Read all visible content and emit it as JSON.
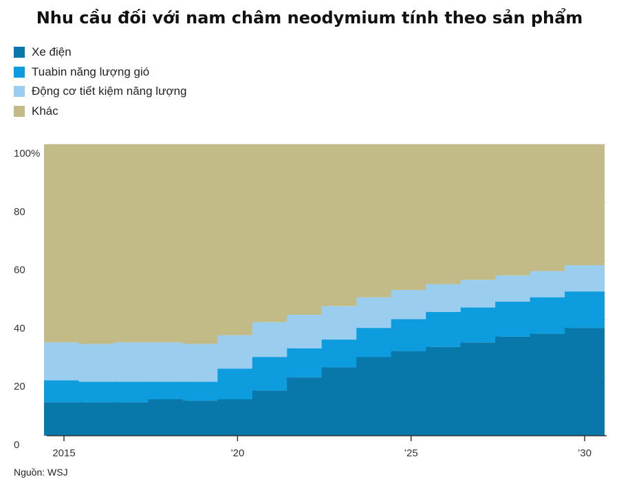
{
  "title": "Nhu cầu đối với nam châm neodymium tính theo sản phẩm",
  "source": "Nguồn: WSJ",
  "colors": {
    "ev": "#0878AA",
    "wind": "#0D9CDD",
    "motor": "#9ACDEE",
    "other": "#C2BB87",
    "grid": "#d9d9d9",
    "axis": "#333333"
  },
  "chart_data": {
    "type": "bar",
    "stacked": true,
    "title": "Nhu cầu đối với nam châm neodymium tính theo sản phẩm",
    "x": [
      2015,
      2016,
      2017,
      2018,
      2019,
      2020,
      2021,
      2022,
      2023,
      2024,
      2025,
      2026,
      2027,
      2028,
      2029,
      2030
    ],
    "x_tick_labels": [
      {
        "x": 2015,
        "label": "2015"
      },
      {
        "x": 2020,
        "label": "’20"
      },
      {
        "x": 2025,
        "label": "’25"
      },
      {
        "x": 2030,
        "label": "’30"
      }
    ],
    "y_ticks": [
      {
        "value": 0,
        "label": "0"
      },
      {
        "value": 20,
        "label": "20"
      },
      {
        "value": 40,
        "label": "40"
      },
      {
        "value": 60,
        "label": "60"
      },
      {
        "value": 80,
        "label": "80"
      },
      {
        "value": 100,
        "label": "100%"
      }
    ],
    "ylim": [
      0,
      100
    ],
    "grid": true,
    "legend_position": "top-left",
    "series": [
      {
        "name": "Xe điện",
        "color_key": "ev",
        "values": [
          11.5,
          11.5,
          11.5,
          12.5,
          12,
          12.5,
          15.5,
          20,
          23.5,
          27,
          29,
          30.5,
          32,
          34,
          35,
          37
        ]
      },
      {
        "name": "Tuabin năng lượng gió",
        "color_key": "wind",
        "values": [
          7.5,
          7,
          7,
          6,
          6.5,
          10.5,
          11.5,
          10,
          9.5,
          10,
          11,
          12,
          12,
          12,
          12.5,
          12.5
        ]
      },
      {
        "name": "Động cơ tiết kiệm năng lượng",
        "color_key": "motor",
        "values": [
          13,
          13,
          13.5,
          13.5,
          13,
          11.5,
          12,
          11.5,
          11.5,
          10.5,
          10,
          9.5,
          9.5,
          9,
          9,
          9
        ]
      },
      {
        "name": "Khác",
        "color_key": "other",
        "values": [
          68,
          68.5,
          68,
          68,
          68.5,
          65.5,
          61,
          58.5,
          55.5,
          52.5,
          50,
          48,
          46.5,
          45,
          43.5,
          41.5
        ]
      }
    ]
  }
}
